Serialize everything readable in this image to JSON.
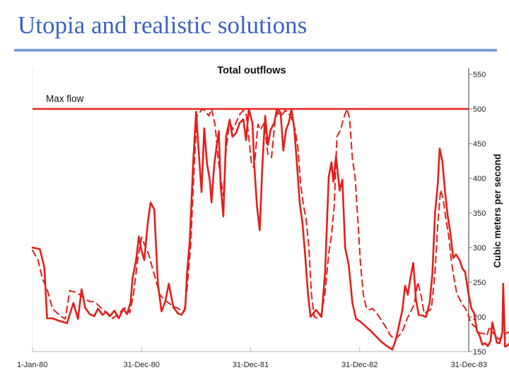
{
  "slide": {
    "title": "Utopia and realistic solutions"
  },
  "chart_data": {
    "type": "line",
    "title": "Total outflows",
    "xlabel": "",
    "ylabel": "Cubic meters per second",
    "ylim": [
      150,
      550
    ],
    "y_ticks": [
      150,
      200,
      250,
      300,
      350,
      400,
      450,
      500,
      550
    ],
    "x_ticks": [
      "1-Jan-80",
      "31-Dec-80",
      "31-Dec-81",
      "31-Dec-82",
      "31-Dec-83"
    ],
    "x_range_months": [
      0,
      48
    ],
    "grid": false,
    "legend": "none",
    "left_axis_faded": true,
    "annotations": [
      {
        "text": "Max flow",
        "y": 500
      }
    ],
    "reference_lines": [
      {
        "name": "Max flow",
        "y": 500,
        "color": "#e8241c"
      }
    ],
    "series": [
      {
        "style": "solid",
        "color": "#e51e1a",
        "points": [
          [
            0,
            300
          ],
          [
            0.8,
            298
          ],
          [
            1.3,
            272
          ],
          [
            1.6,
            198
          ],
          [
            2.2,
            198
          ],
          [
            3.0,
            194
          ],
          [
            3.8,
            191
          ],
          [
            4.5,
            220
          ],
          [
            5.0,
            197
          ],
          [
            5.4,
            240
          ],
          [
            5.8,
            213
          ],
          [
            6.3,
            204
          ],
          [
            6.8,
            201
          ],
          [
            7.2,
            212
          ],
          [
            7.7,
            203
          ],
          [
            8.1,
            207
          ],
          [
            8.5,
            201
          ],
          [
            9.0,
            209
          ],
          [
            9.5,
            198
          ],
          [
            10.0,
            212
          ],
          [
            10.4,
            204
          ],
          [
            10.8,
            221
          ],
          [
            11.0,
            255
          ],
          [
            11.4,
            282
          ],
          [
            11.7,
            316
          ],
          [
            12.0,
            295
          ],
          [
            12.3,
            282
          ],
          [
            12.7,
            337
          ],
          [
            13.0,
            365
          ],
          [
            13.4,
            355
          ],
          [
            13.8,
            247
          ],
          [
            14.2,
            208
          ],
          [
            14.6,
            222
          ],
          [
            15.0,
            248
          ],
          [
            15.5,
            214
          ],
          [
            16.0,
            205
          ],
          [
            16.4,
            203
          ],
          [
            16.8,
            212
          ],
          [
            17.0,
            262
          ],
          [
            17.3,
            310
          ],
          [
            17.7,
            427
          ],
          [
            18.0,
            496
          ],
          [
            18.3,
            437
          ],
          [
            18.6,
            380
          ],
          [
            18.9,
            472
          ],
          [
            19.2,
            421
          ],
          [
            19.5,
            398
          ],
          [
            19.7,
            365
          ],
          [
            20.0,
            420
          ],
          [
            20.3,
            450
          ],
          [
            20.5,
            468
          ],
          [
            20.7,
            390
          ],
          [
            21.0,
            345
          ],
          [
            21.3,
            460
          ],
          [
            21.7,
            484
          ],
          [
            22.0,
            460
          ],
          [
            22.4,
            465
          ],
          [
            22.8,
            480
          ],
          [
            23.2,
            485
          ],
          [
            23.5,
            455
          ],
          [
            23.8,
            500
          ],
          [
            24.2,
            480
          ],
          [
            24.4,
            420
          ],
          [
            24.7,
            360
          ],
          [
            25.0,
            325
          ],
          [
            25.3,
            420
          ],
          [
            25.6,
            490
          ],
          [
            25.9,
            448
          ],
          [
            26.2,
            470
          ],
          [
            26.6,
            480
          ],
          [
            26.9,
            500
          ],
          [
            27.3,
            495
          ],
          [
            27.6,
            440
          ],
          [
            27.9,
            470
          ],
          [
            28.2,
            480
          ],
          [
            28.5,
            500
          ],
          [
            28.8,
            472
          ],
          [
            29.1,
            420
          ],
          [
            29.4,
            365
          ],
          [
            29.7,
            336
          ],
          [
            30.0,
            290
          ],
          [
            30.3,
            235
          ],
          [
            30.6,
            200
          ],
          [
            30.9,
            205
          ],
          [
            31.2,
            210
          ],
          [
            31.5,
            205
          ],
          [
            31.8,
            200
          ],
          [
            32.2,
            265
          ],
          [
            32.6,
            402
          ],
          [
            32.9,
            423
          ],
          [
            33.1,
            395
          ],
          [
            33.4,
            432
          ],
          [
            33.8,
            382
          ],
          [
            34.1,
            398
          ],
          [
            34.4,
            300
          ],
          [
            34.8,
            275
          ],
          [
            35.2,
            220
          ],
          [
            35.6,
            197
          ],
          [
            36.0,
            194
          ],
          [
            36.6,
            187
          ],
          [
            37.2,
            180
          ],
          [
            37.8,
            172
          ],
          [
            38.4,
            164
          ],
          [
            39.0,
            158
          ],
          [
            39.6,
            153
          ],
          [
            40.0,
            168
          ],
          [
            40.4,
            192
          ],
          [
            40.7,
            210
          ],
          [
            41.0,
            245
          ],
          [
            41.3,
            232
          ],
          [
            41.6,
            257
          ],
          [
            41.9,
            278
          ],
          [
            42.2,
            225
          ],
          [
            42.5,
            203
          ],
          [
            42.9,
            202
          ],
          [
            43.3,
            200
          ],
          [
            43.7,
            220
          ],
          [
            44.0,
            262
          ],
          [
            44.3,
            350
          ],
          [
            44.6,
            392
          ],
          [
            44.8,
            443
          ],
          [
            45.1,
            425
          ],
          [
            45.4,
            380
          ],
          [
            45.7,
            345
          ],
          [
            46.0,
            320
          ],
          [
            46.3,
            285
          ],
          [
            46.6,
            290
          ],
          [
            47.0,
            282
          ],
          [
            47.3,
            270
          ],
          [
            47.6,
            265
          ],
          [
            48.0,
            232
          ],
          [
            48.3,
            212
          ],
          [
            48.6,
            205
          ],
          [
            48.9,
            180
          ],
          [
            49.2,
            173
          ],
          [
            49.5,
            160
          ],
          [
            49.8,
            162
          ],
          [
            50.1,
            158
          ],
          [
            50.4,
            165
          ],
          [
            50.6,
            192
          ],
          [
            50.9,
            175
          ],
          [
            51.1,
            163
          ],
          [
            51.4,
            162
          ],
          [
            51.7,
            178
          ],
          [
            51.8,
            248
          ],
          [
            52.0,
            157
          ],
          [
            52.4,
            160
          ],
          [
            52.8,
            170
          ],
          [
            53.2,
            175
          ],
          [
            53.5,
            175
          ]
        ]
      },
      {
        "style": "dashed",
        "color": "#e51e1a",
        "points": [
          [
            0,
            296
          ],
          [
            0.6,
            282
          ],
          [
            1.1,
            255
          ],
          [
            1.6,
            240
          ],
          [
            2.2,
            212
          ],
          [
            3.0,
            202
          ],
          [
            3.6,
            197
          ],
          [
            4.1,
            238
          ],
          [
            4.6,
            236
          ],
          [
            5.2,
            232
          ],
          [
            5.8,
            226
          ],
          [
            6.3,
            222
          ],
          [
            6.8,
            222
          ],
          [
            7.3,
            216
          ],
          [
            7.8,
            210
          ],
          [
            8.3,
            205
          ],
          [
            8.8,
            198
          ],
          [
            9.3,
            202
          ],
          [
            9.8,
            209
          ],
          [
            10.3,
            214
          ],
          [
            10.7,
            206
          ],
          [
            11.1,
            232
          ],
          [
            11.6,
            285
          ],
          [
            12.0,
            315
          ],
          [
            12.4,
            302
          ],
          [
            12.8,
            290
          ],
          [
            13.2,
            270
          ],
          [
            13.6,
            252
          ],
          [
            14.0,
            232
          ],
          [
            14.5,
            225
          ],
          [
            15.0,
            220
          ],
          [
            15.5,
            215
          ],
          [
            15.9,
            213
          ],
          [
            16.3,
            210
          ],
          [
            16.7,
            208
          ],
          [
            17.0,
            240
          ],
          [
            17.4,
            303
          ],
          [
            17.8,
            420
          ],
          [
            18.1,
            490
          ],
          [
            18.4,
            495
          ],
          [
            18.7,
            500
          ],
          [
            19.0,
            497
          ],
          [
            19.4,
            490
          ],
          [
            19.7,
            500
          ],
          [
            20.1,
            476
          ],
          [
            20.4,
            432
          ],
          [
            20.7,
            400
          ],
          [
            21.0,
            375
          ],
          [
            21.3,
            440
          ],
          [
            21.7,
            485
          ],
          [
            22.0,
            470
          ],
          [
            22.4,
            480
          ],
          [
            22.8,
            492
          ],
          [
            23.2,
            498
          ],
          [
            23.5,
            493
          ],
          [
            23.8,
            460
          ],
          [
            24.1,
            420
          ],
          [
            24.4,
            415
          ],
          [
            24.8,
            478
          ],
          [
            25.1,
            470
          ],
          [
            25.5,
            480
          ],
          [
            25.9,
            435
          ],
          [
            26.3,
            430
          ],
          [
            26.7,
            485
          ],
          [
            27.0,
            495
          ],
          [
            27.4,
            490
          ],
          [
            27.8,
            498
          ],
          [
            28.1,
            495
          ],
          [
            28.5,
            487
          ],
          [
            28.9,
            470
          ],
          [
            29.2,
            445
          ],
          [
            29.5,
            392
          ],
          [
            29.8,
            362
          ],
          [
            30.1,
            342
          ],
          [
            30.4,
            302
          ],
          [
            30.7,
            232
          ],
          [
            31.0,
            200
          ],
          [
            31.4,
            198
          ],
          [
            31.8,
            205
          ],
          [
            32.2,
            236
          ],
          [
            32.6,
            292
          ],
          [
            32.9,
            318
          ],
          [
            33.2,
            360
          ],
          [
            33.5,
            460
          ],
          [
            33.9,
            470
          ],
          [
            34.2,
            485
          ],
          [
            34.6,
            500
          ],
          [
            34.9,
            486
          ],
          [
            35.2,
            428
          ],
          [
            35.5,
            402
          ],
          [
            35.8,
            340
          ],
          [
            36.1,
            276
          ],
          [
            36.4,
            232
          ],
          [
            36.7,
            215
          ],
          [
            37.0,
            210
          ],
          [
            37.4,
            212
          ],
          [
            37.9,
            205
          ],
          [
            38.4,
            195
          ],
          [
            38.9,
            185
          ],
          [
            39.4,
            173
          ],
          [
            39.9,
            168
          ],
          [
            40.4,
            174
          ],
          [
            40.8,
            182
          ],
          [
            41.2,
            197
          ],
          [
            41.6,
            207
          ],
          [
            42.0,
            218
          ],
          [
            42.4,
            250
          ],
          [
            42.8,
            228
          ],
          [
            43.1,
            205
          ],
          [
            43.5,
            208
          ],
          [
            43.9,
            212
          ],
          [
            44.3,
            265
          ],
          [
            44.6,
            335
          ],
          [
            44.9,
            383
          ],
          [
            45.2,
            370
          ],
          [
            45.5,
            340
          ],
          [
            45.8,
            317
          ],
          [
            46.1,
            280
          ],
          [
            46.4,
            255
          ],
          [
            46.7,
            233
          ],
          [
            47.0,
            226
          ],
          [
            47.3,
            218
          ],
          [
            47.6,
            213
          ],
          [
            47.9,
            205
          ],
          [
            48.2,
            192
          ],
          [
            48.5,
            188
          ],
          [
            48.8,
            185
          ],
          [
            49.1,
            178
          ],
          [
            49.4,
            176
          ],
          [
            49.7,
            176
          ],
          [
            50.0,
            173
          ],
          [
            50.3,
            186
          ],
          [
            50.6,
            178
          ],
          [
            51.0,
            172
          ],
          [
            51.3,
            168
          ],
          [
            51.6,
            170
          ],
          [
            51.9,
            174
          ],
          [
            52.3,
            178
          ],
          [
            52.6,
            176
          ],
          [
            53.0,
            177
          ],
          [
            53.5,
            178
          ]
        ]
      }
    ]
  }
}
